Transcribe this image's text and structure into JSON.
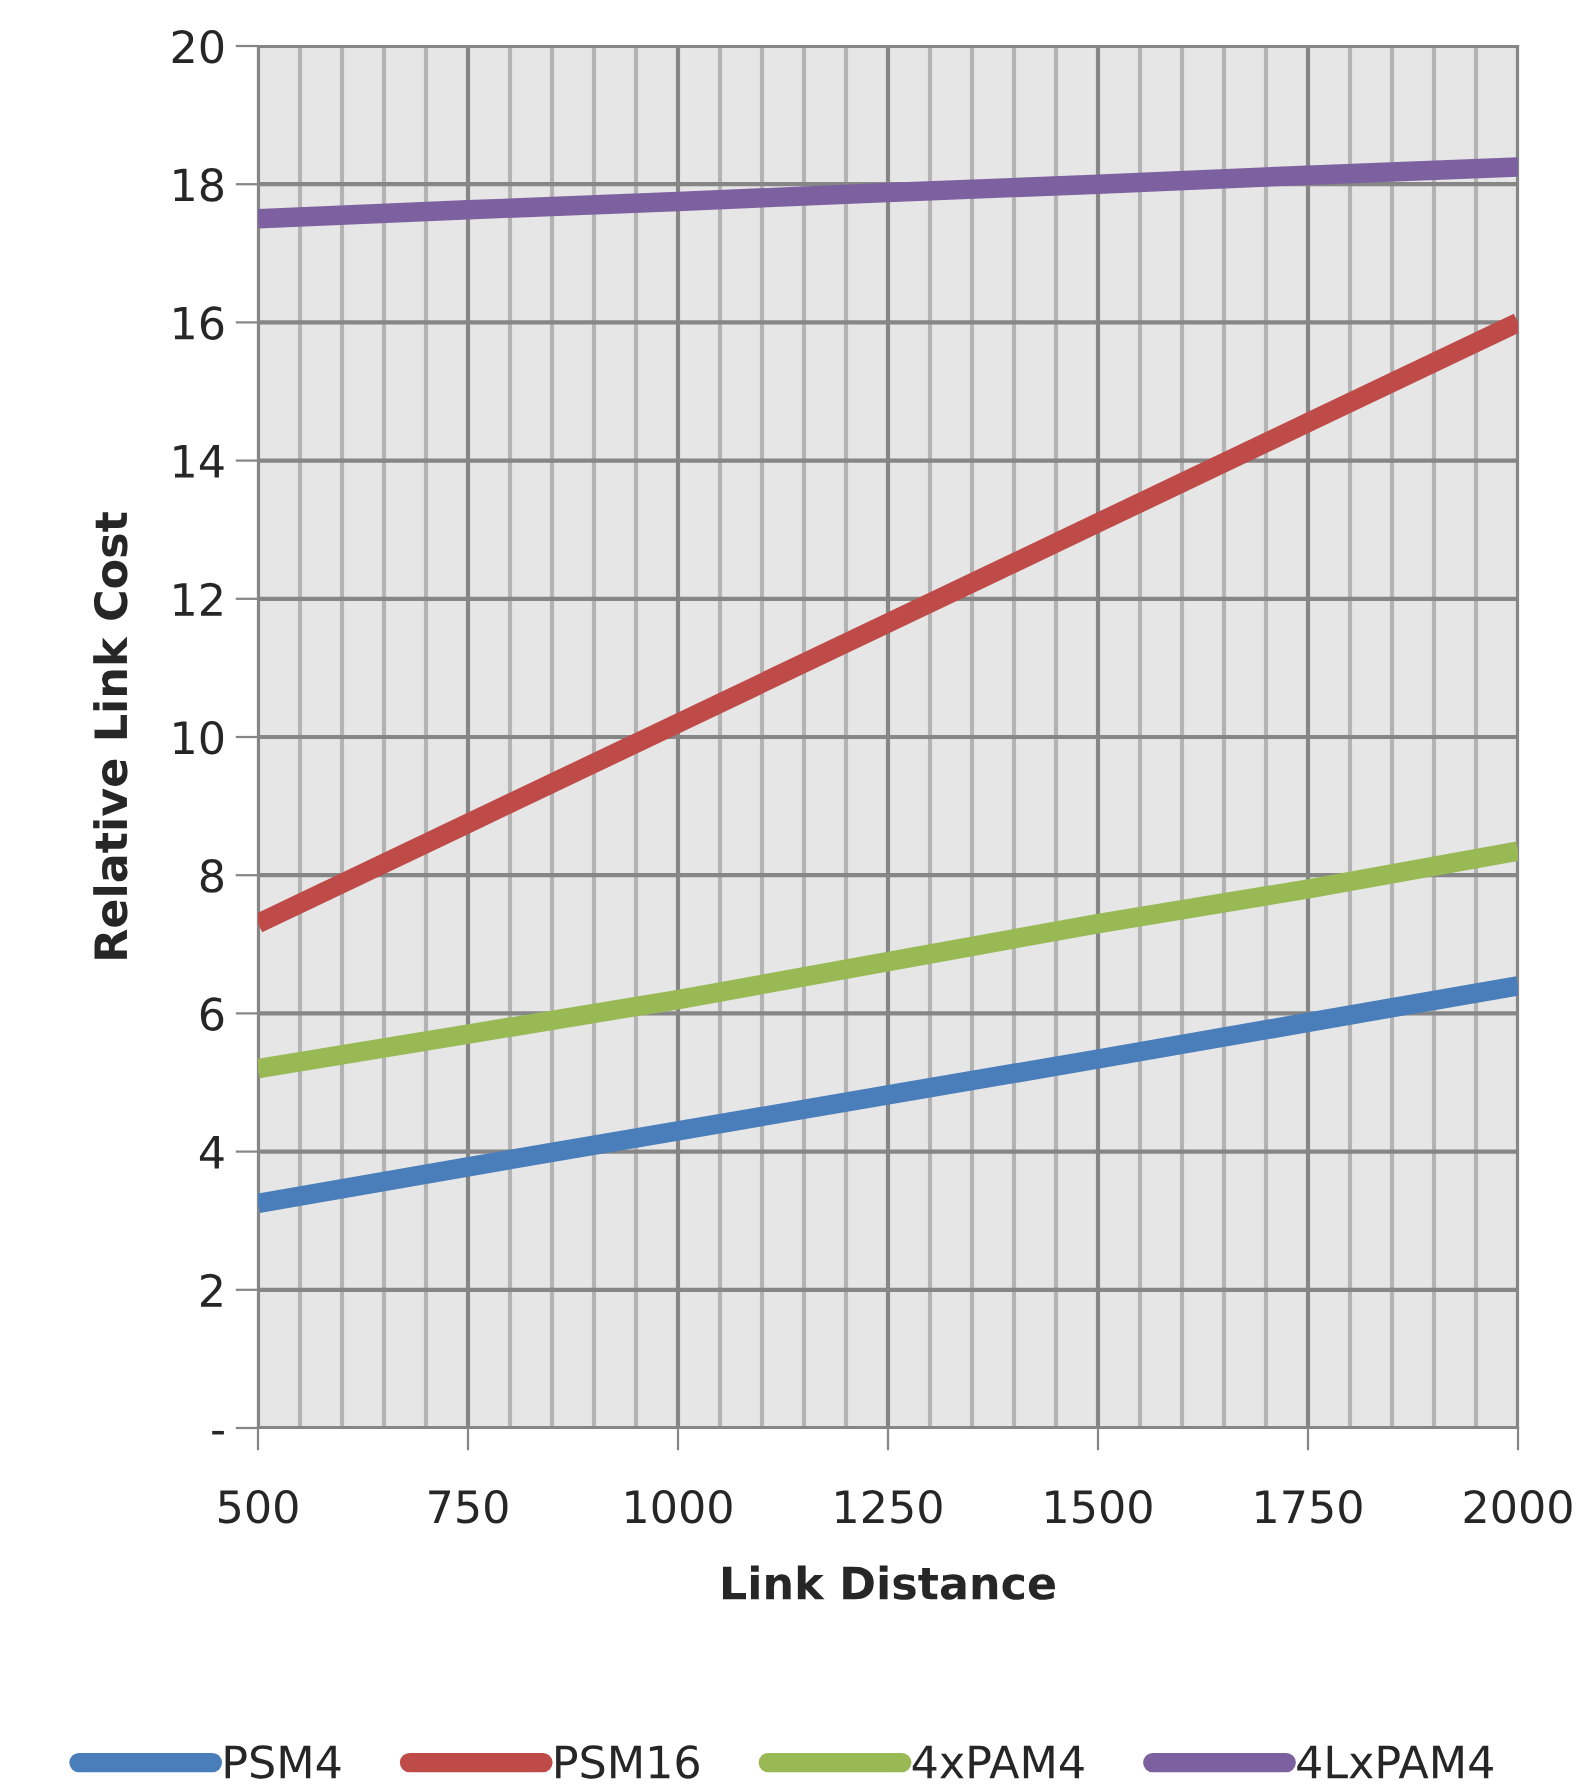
{
  "chart_data": {
    "type": "line",
    "xlabel": "Link Distance",
    "ylabel": "Relative Link Cost",
    "x": [
      500,
      750,
      1000,
      1250,
      1500,
      1750,
      2000
    ],
    "series": [
      {
        "name": "PSM4",
        "color": "#4a7ebb",
        "values": [
          3.25,
          3.78,
          4.3,
          4.82,
          5.34,
          5.87,
          6.4
        ]
      },
      {
        "name": "PSM16",
        "color": "#be4b48",
        "values": [
          7.3,
          8.75,
          10.2,
          11.65,
          13.1,
          14.55,
          16.0
        ]
      },
      {
        "name": "4xPAM4",
        "color": "#98b954",
        "values": [
          5.2,
          5.7,
          6.2,
          6.75,
          7.3,
          7.8,
          8.35
        ]
      },
      {
        "name": "4LxPAM4",
        "color": "#7d60a0",
        "values": [
          17.5,
          17.63,
          17.75,
          17.88,
          18.0,
          18.13,
          18.25
        ]
      }
    ],
    "xlim": [
      500,
      2000
    ],
    "xticks": [
      500,
      750,
      1000,
      1250,
      1500,
      1750,
      2000
    ],
    "ylim": [
      0,
      20
    ],
    "yticks": [
      {
        "value": 0,
        "label": "-"
      },
      2,
      4,
      6,
      8,
      10,
      12,
      14,
      16,
      18,
      20
    ],
    "grid": true,
    "legend": "bottom",
    "marker": "none",
    "line_style": "solid"
  }
}
